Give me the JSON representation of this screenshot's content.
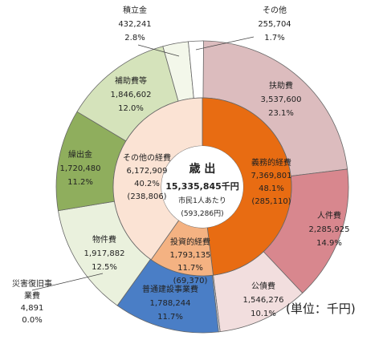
{
  "chart_data": {
    "type": "pie",
    "variant": "nested-donut",
    "unit": "(単位：千円)",
    "center": {
      "title": "歳 出",
      "total": "15,335,845千円",
      "per_capita_label": "市民1人あたり",
      "per_capita_value": "(593,286円)"
    },
    "inner_ring": [
      {
        "name": "義務的経費",
        "value": 7369801,
        "display": "7,369,801",
        "pct": "48.1%",
        "per_capita": "(285,110)",
        "color": "#e86c12"
      },
      {
        "name": "投資的経費",
        "value": 1793135,
        "display": "1,793,135",
        "pct": "11.7%",
        "per_capita": "(69,370)",
        "color": "#f4b282"
      },
      {
        "name": "その他の経費",
        "value": 6172909,
        "display": "6,172,909",
        "pct": "40.2%",
        "per_capita": "(238,806)",
        "color": "#fbe3d4"
      }
    ],
    "outer_ring": [
      {
        "name": "扶助費",
        "value": 3537600,
        "display": "3,537,600",
        "pct": "23.1%",
        "color": "#dcbcbe"
      },
      {
        "name": "人件費",
        "value": 2285925,
        "display": "2,285,925",
        "pct": "14.9%",
        "color": "#d8878e"
      },
      {
        "name": "公債費",
        "value": 1546276,
        "display": "1,546,276",
        "pct": "10.1%",
        "color": "#f2dede"
      },
      {
        "name": "災害復旧事業費",
        "value": 4891,
        "display": "4,891",
        "pct": "0.0%",
        "color": "#dbe3f0"
      },
      {
        "name": "普通建設事業費",
        "value": 1788244,
        "display": "1,788,244",
        "pct": "11.7%",
        "color": "#4a7ec6"
      },
      {
        "name": "物件費",
        "value": 1917882,
        "display": "1,917,882",
        "pct": "12.5%",
        "color": "#eaf1dd"
      },
      {
        "name": "繰出金",
        "value": 1720480,
        "display": "1,720,480",
        "pct": "11.2%",
        "color": "#8fae5d"
      },
      {
        "name": "補助費等",
        "value": 1846602,
        "display": "1,846,602",
        "pct": "12.0%",
        "color": "#d5e3bb"
      },
      {
        "name": "積立金",
        "value": 432241,
        "display": "432,241",
        "pct": "2.8%",
        "color": "#f3f7ea"
      },
      {
        "name": "その他",
        "value": 255704,
        "display": "255,704",
        "pct": "1.7%",
        "color": "#ffffff"
      }
    ]
  }
}
